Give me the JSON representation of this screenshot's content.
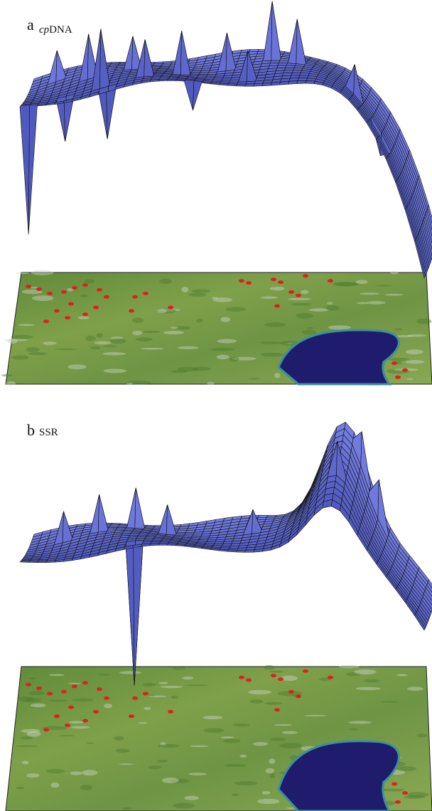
{
  "panels": [
    {
      "label": "a",
      "marker": [
        "cp",
        "DNA"
      ]
    },
    {
      "label": "b",
      "marker": [
        "SSR"
      ]
    }
  ]
}
